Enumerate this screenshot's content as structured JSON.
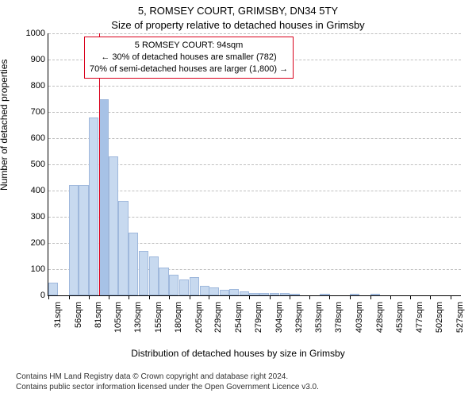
{
  "title_main": "5, ROMSEY COURT, GRIMSBY, DN34 5TY",
  "title_sub": "Size of property relative to detached houses in Grimsby",
  "ylabel": "Number of detached properties",
  "xlabel": "Distribution of detached houses by size in Grimsby",
  "chart": {
    "type": "histogram",
    "ylim": [
      0,
      1000
    ],
    "ytick_step": 100,
    "yticks": [
      0,
      100,
      200,
      300,
      400,
      500,
      600,
      700,
      800,
      900,
      1000
    ],
    "ytick_labels": [
      "0",
      "100",
      "200",
      "300",
      "400",
      "500",
      "600",
      "700",
      "800",
      "900",
      "1000"
    ],
    "xlim": [
      31,
      540
    ],
    "xtick_step": 25,
    "xticks": [
      31,
      56,
      81,
      105,
      130,
      155,
      180,
      205,
      229,
      254,
      279,
      304,
      329,
      353,
      378,
      403,
      428,
      453,
      477,
      502,
      527
    ],
    "xtick_labels": [
      "31sqm",
      "56sqm",
      "81sqm",
      "105sqm",
      "130sqm",
      "155sqm",
      "180sqm",
      "205sqm",
      "229sqm",
      "254sqm",
      "279sqm",
      "304sqm",
      "329sqm",
      "353sqm",
      "378sqm",
      "403sqm",
      "428sqm",
      "453sqm",
      "477sqm",
      "502sqm",
      "527sqm"
    ],
    "bin_width": 12.5,
    "bar_fill": "#c7d9ef",
    "bar_stroke": "#9fb8dc",
    "highlight_fill": "#a7c2e6",
    "grid_color": "#bfbfbf",
    "background_color": "#ffffff",
    "label_fontsize": 11,
    "title_fontsize": 13,
    "bars": [
      {
        "x": 31,
        "v": 50
      },
      {
        "x": 43.5,
        "v": 0
      },
      {
        "x": 56,
        "v": 420
      },
      {
        "x": 68.5,
        "v": 420
      },
      {
        "x": 81,
        "v": 680
      },
      {
        "x": 93.5,
        "v": 750,
        "highlight": true
      },
      {
        "x": 105,
        "v": 530
      },
      {
        "x": 117.5,
        "v": 360
      },
      {
        "x": 130,
        "v": 240
      },
      {
        "x": 142.5,
        "v": 170
      },
      {
        "x": 155,
        "v": 150
      },
      {
        "x": 167.5,
        "v": 105
      },
      {
        "x": 180,
        "v": 80
      },
      {
        "x": 192.5,
        "v": 60
      },
      {
        "x": 205,
        "v": 70
      },
      {
        "x": 217.5,
        "v": 35
      },
      {
        "x": 229,
        "v": 30
      },
      {
        "x": 242,
        "v": 20
      },
      {
        "x": 254,
        "v": 25
      },
      {
        "x": 267,
        "v": 15
      },
      {
        "x": 279,
        "v": 10
      },
      {
        "x": 291.5,
        "v": 10
      },
      {
        "x": 304,
        "v": 8
      },
      {
        "x": 316.5,
        "v": 10
      },
      {
        "x": 329,
        "v": 6
      },
      {
        "x": 341.5,
        "v": 0
      },
      {
        "x": 353,
        "v": 0
      },
      {
        "x": 366,
        "v": 5
      },
      {
        "x": 378,
        "v": 0
      },
      {
        "x": 403,
        "v": 5
      },
      {
        "x": 428,
        "v": 5
      }
    ],
    "reference_line": {
      "x": 94,
      "color": "#d9001b"
    }
  },
  "annotation": {
    "lines": [
      "5 ROMSEY COURT: 94sqm",
      "← 30% of detached houses are smaller (782)",
      "70% of semi-detached houses are larger (1,800) →"
    ],
    "border_color": "#d9001b",
    "fontsize": 11
  },
  "attribution": {
    "line1": "Contains HM Land Registry data © Crown copyright and database right 2024.",
    "line2": "Contains public sector information licensed under the Open Government Licence v3.0."
  }
}
